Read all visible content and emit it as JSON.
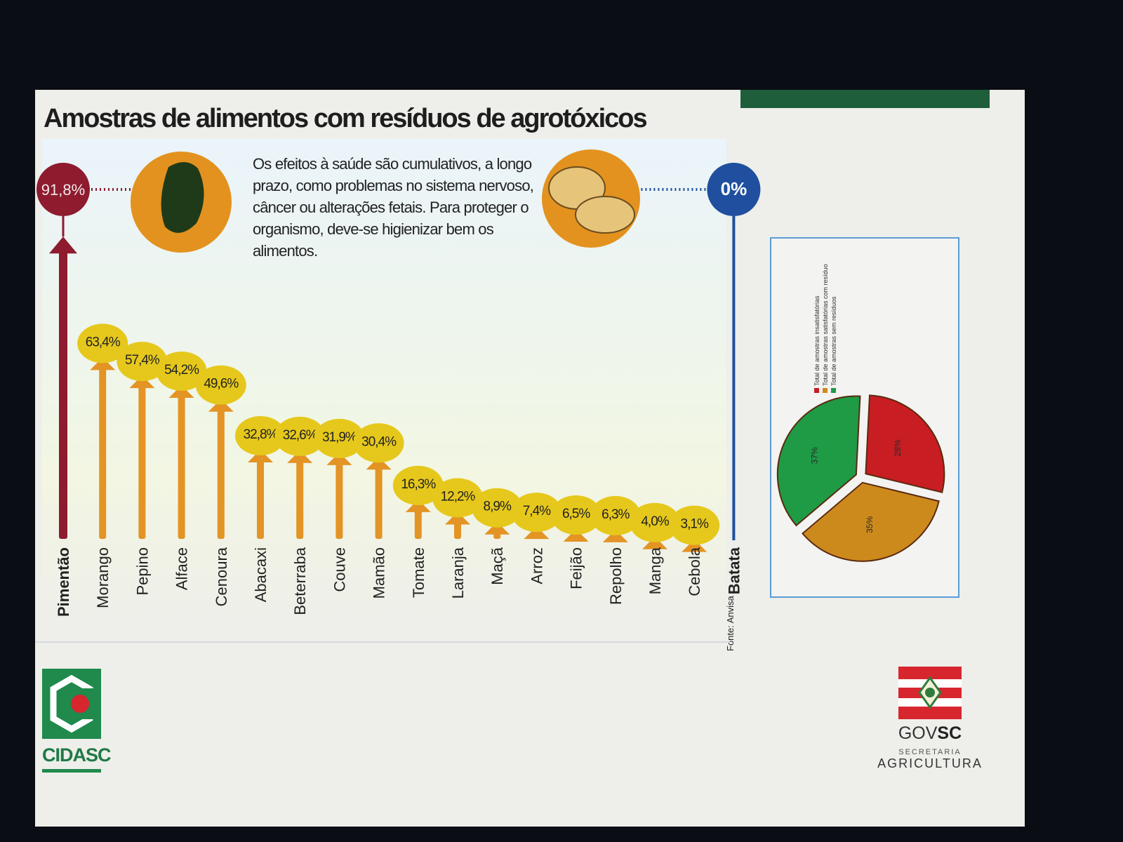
{
  "slide": {
    "title": "Amostras de alimentos com resíduos de agrotóxicos",
    "note": "Os efeitos à saúde são cumulativos, a longo prazo, como problemas no sistema nervoso, câncer ou alterações fetais. Para proteger o organismo, deve-se higienizar bem os alimentos.",
    "source": "Fonte: Anvisa"
  },
  "chart_data": [
    {
      "type": "bar",
      "title": "Amostras de alimentos com resíduos de agrotóxicos",
      "categories": [
        "Pimentão",
        "Morango",
        "Pepino",
        "Alface",
        "Cenoura",
        "Abacaxi",
        "Beterraba",
        "Couve",
        "Mamão",
        "Tomate",
        "Laranja",
        "Maçã",
        "Arroz",
        "Feijão",
        "Repolho",
        "Manga",
        "Cebola",
        "Batata"
      ],
      "values": [
        91.8,
        63.4,
        57.4,
        54.2,
        49.6,
        32.8,
        32.6,
        31.9,
        30.4,
        16.3,
        12.2,
        8.9,
        7.4,
        6.5,
        6.3,
        4.0,
        3.1,
        0
      ],
      "labels": [
        "91,8%",
        "63,4%",
        "57,4%",
        "54,2%",
        "49,6%",
        "32,8%",
        "32,6%",
        "31,9%",
        "30,4%",
        "16,3%",
        "12,2%",
        "8,9%",
        "7,4%",
        "6,5%",
        "6,3%",
        "4,0%",
        "3,1%",
        "0%"
      ],
      "ylim": [
        0,
        100
      ],
      "colors": {
        "highest": "#8e1b2e",
        "middle": "#e39424",
        "lowest": "#1f4f9e",
        "highlight": "#e6c81c"
      }
    },
    {
      "type": "pie",
      "labels": [
        "Total de amostras insatisfatórias",
        "Total de amostras satisfatórias com resíduo",
        "Total de amostras sem resíduos"
      ],
      "values": [
        28,
        35,
        37
      ],
      "value_labels": [
        "28%",
        "35%",
        "37%"
      ],
      "colors": [
        "#c81d22",
        "#cd8a1c",
        "#1f9a45"
      ],
      "legend": "top"
    }
  ],
  "logos": {
    "cidasc": "CIDASC",
    "gov_prefix": "GOV",
    "gov_suffix": "SC",
    "gov_line1": "SECRETARIA",
    "gov_line2": "AGRICULTURA"
  }
}
